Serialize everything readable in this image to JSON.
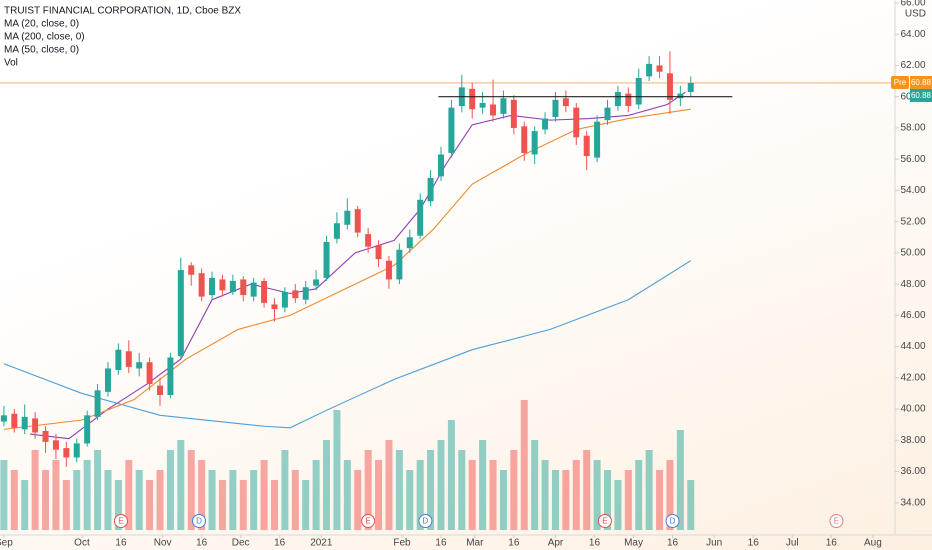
{
  "chart_data": {
    "type": "candlestick",
    "title": "TRUIST FINANCIAL CORPORATION, 1D, Cboe BZX",
    "currency": "USD",
    "volume_label": "Vol",
    "up_color": "#26a69a",
    "down_color": "#ef5350",
    "x": [
      0,
      4,
      8,
      12,
      16,
      20,
      24,
      28,
      32,
      36,
      40,
      44,
      48,
      52,
      56,
      60,
      64,
      68,
      72,
      76,
      80,
      84,
      88,
      92,
      96,
      100,
      104,
      108,
      112,
      116,
      120,
      124,
      128,
      132,
      136,
      140,
      144,
      148,
      152,
      156,
      160,
      164,
      168,
      172,
      176,
      180,
      184,
      188,
      192,
      196,
      200,
      204,
      208,
      212,
      216,
      220,
      224,
      228,
      232,
      236,
      240,
      244,
      248,
      252,
      256,
      260,
      264
    ],
    "open": [
      39.2,
      39.7,
      38.7,
      39.4,
      38.6,
      38.0,
      37.5,
      36.9,
      37.8,
      39.5,
      41.1,
      42.5,
      43.7,
      42.6,
      43.0,
      41.5,
      40.9,
      43.4,
      49.2,
      48.7,
      47.3,
      48.3,
      47.5,
      48.3,
      47.2,
      48.2,
      46.7,
      46.5,
      47.6,
      47.0,
      47.9,
      48.4,
      50.9,
      51.8,
      52.8,
      51.2,
      50.5,
      49.5,
      48.3,
      50.3,
      51.1,
      53.3,
      54.9,
      56.4,
      59.4,
      60.5,
      59.3,
      59.5,
      58.9,
      59.8,
      58.1,
      56.3,
      57.9,
      58.7,
      59.9,
      59.3,
      57.5,
      56.1,
      58.5,
      59.4,
      60.2,
      59.5,
      61.3,
      62.0,
      61.5,
      59.9,
      60.3
    ],
    "high": [
      40.2,
      40.0,
      40.3,
      39.8,
      38.9,
      38.4,
      37.9,
      38.1,
      39.9,
      41.6,
      43.0,
      44.2,
      44.4,
      43.6,
      43.3,
      42.0,
      43.6,
      49.7,
      49.4,
      49.0,
      48.8,
      48.6,
      48.6,
      48.5,
      48.4,
      48.4,
      47.1,
      47.8,
      48.0,
      48.2,
      48.9,
      51.1,
      52.6,
      53.5,
      53.0,
      51.6,
      50.8,
      49.8,
      50.6,
      51.5,
      53.8,
      55.3,
      56.8,
      59.8,
      61.4,
      60.9,
      60.3,
      61.1,
      60.4,
      60.1,
      58.4,
      58.1,
      59.0,
      60.3,
      60.4,
      59.6,
      57.8,
      58.8,
      59.8,
      60.7,
      60.6,
      61.8,
      62.6,
      62.6,
      62.9,
      60.7,
      61.3
    ],
    "low": [
      38.9,
      38.5,
      38.4,
      38.1,
      37.2,
      36.8,
      36.3,
      36.6,
      37.6,
      39.3,
      40.8,
      42.2,
      42.3,
      42.1,
      41.2,
      40.2,
      40.7,
      43.2,
      47.9,
      46.9,
      47.0,
      47.2,
      47.3,
      46.9,
      46.9,
      46.5,
      45.6,
      46.2,
      46.8,
      46.7,
      47.6,
      48.2,
      50.6,
      51.5,
      51.0,
      50.0,
      49.1,
      47.7,
      48.0,
      50.0,
      50.9,
      53.0,
      54.6,
      56.1,
      59.0,
      58.6,
      58.9,
      58.4,
      58.6,
      57.6,
      55.9,
      55.7,
      57.6,
      58.4,
      59.0,
      56.9,
      55.3,
      55.8,
      58.2,
      59.1,
      59.0,
      59.2,
      61.0,
      61.2,
      58.9,
      59.4,
      60.0
    ],
    "close": [
      39.6,
      38.8,
      39.5,
      38.5,
      37.9,
      37.4,
      36.9,
      37.8,
      39.6,
      41.2,
      42.6,
      43.8,
      42.7,
      43.0,
      41.6,
      40.9,
      43.3,
      48.9,
      48.6,
      47.2,
      48.4,
      47.6,
      48.2,
      47.3,
      48.1,
      46.8,
      46.4,
      47.5,
      47.1,
      47.8,
      48.3,
      50.7,
      51.9,
      52.7,
      51.3,
      50.4,
      49.6,
      48.3,
      50.2,
      51.0,
      53.4,
      54.8,
      56.3,
      59.3,
      60.6,
      59.2,
      59.6,
      58.8,
      59.9,
      58.0,
      56.4,
      57.8,
      58.6,
      59.8,
      59.4,
      57.4,
      56.2,
      58.4,
      59.3,
      60.3,
      59.4,
      61.2,
      62.1,
      61.6,
      59.8,
      60.2,
      60.88
    ],
    "volume": [
      7,
      6,
      5,
      8,
      6,
      7,
      5,
      6,
      7,
      8,
      6,
      5,
      7,
      6,
      5,
      6,
      8,
      9,
      8,
      7,
      6,
      5,
      6,
      5,
      6,
      7,
      5,
      8,
      6,
      5,
      7,
      9,
      12,
      7,
      6,
      8,
      7,
      9,
      8,
      6,
      7,
      8,
      9,
      11,
      8,
      7,
      9,
      7,
      6,
      8,
      13,
      9,
      7,
      6,
      6,
      7,
      8,
      7,
      6,
      5,
      6,
      7,
      8,
      6,
      7,
      10,
      5
    ],
    "series": [
      {
        "name": "MA (20, close, 0)",
        "color": "#8e3fb0",
        "x": [
          10,
          25,
          40,
          55,
          68,
          80,
          95,
          110,
          120,
          135,
          150,
          160,
          170,
          180,
          195,
          210,
          225,
          240,
          255,
          262
        ],
        "values": [
          38.4,
          38.1,
          40.0,
          41.6,
          43.2,
          47.0,
          48.0,
          47.4,
          47.7,
          50.0,
          50.8,
          52.8,
          55.7,
          58.2,
          58.8,
          58.5,
          58.6,
          58.8,
          59.5,
          60.3
        ]
      },
      {
        "name": "MA (200, close, 0)",
        "color": "#4a9fd8",
        "x": [
          0,
          30,
          60,
          100,
          110,
          125,
          150,
          180,
          210,
          240,
          264
        ],
        "values": [
          42.9,
          41.0,
          39.6,
          38.9,
          38.8,
          40.0,
          41.9,
          43.8,
          45.1,
          47.0,
          49.5
        ]
      },
      {
        "name": "MA (50, close, 0)",
        "color": "#ee8a32",
        "x": [
          0,
          30,
          50,
          70,
          90,
          110,
          130,
          150,
          165,
          180,
          200,
          220,
          240,
          264
        ],
        "values": [
          38.7,
          39.3,
          40.6,
          43.2,
          45.1,
          46.0,
          47.6,
          49.2,
          51.5,
          54.4,
          56.3,
          57.9,
          58.6,
          59.2
        ]
      }
    ],
    "hline": {
      "y": 60,
      "x": [
        167,
        280
      ]
    },
    "pre_label": "Pre",
    "pre_price": {
      "value": 60.88,
      "label": "60.88"
    },
    "last_price": {
      "value": 60.88,
      "label": "60.88"
    },
    "events": [
      {
        "x": 45,
        "label": "E"
      },
      {
        "x": 75,
        "label": "D"
      },
      {
        "x": 140,
        "label": "E"
      },
      {
        "x": 162,
        "label": "D"
      },
      {
        "x": 231,
        "label": "E"
      },
      {
        "x": 257,
        "label": "D"
      },
      {
        "x": 320,
        "label": "E"
      }
    ],
    "xlim": [
      -1.5,
      342.5
    ],
    "xticks": [
      {
        "value": 0,
        "label": "Sep"
      },
      {
        "value": 30,
        "label": "Oct"
      },
      {
        "value": 45,
        "label": "16"
      },
      {
        "value": 61,
        "label": "Nov"
      },
      {
        "value": 76,
        "label": "16"
      },
      {
        "value": 91,
        "label": "Dec"
      },
      {
        "value": 106,
        "label": "16"
      },
      {
        "value": 122,
        "label": "2021"
      },
      {
        "value": 153,
        "label": "Feb"
      },
      {
        "value": 168,
        "label": "16"
      },
      {
        "value": 181,
        "label": "Mar"
      },
      {
        "value": 196,
        "label": "16"
      },
      {
        "value": 212,
        "label": "Apr"
      },
      {
        "value": 227,
        "label": "16"
      },
      {
        "value": 242,
        "label": "May"
      },
      {
        "value": 257,
        "label": "16"
      },
      {
        "value": 273,
        "label": "Jun"
      },
      {
        "value": 288,
        "label": "16"
      },
      {
        "value": 303,
        "label": "Jul"
      },
      {
        "value": 318,
        "label": "16"
      },
      {
        "value": 334,
        "label": "Aug"
      }
    ],
    "ylim": [
      32,
      66
    ],
    "yticks": [
      {
        "value": 34,
        "label": "34.00"
      },
      {
        "value": 36,
        "label": "36.00"
      },
      {
        "value": 38,
        "label": "38.00"
      },
      {
        "value": 40,
        "label": "40.00"
      },
      {
        "value": 42,
        "label": "42.00"
      },
      {
        "value": 44,
        "label": "44.00"
      },
      {
        "value": 46,
        "label": "46.00"
      },
      {
        "value": 48,
        "label": "48.00"
      },
      {
        "value": 50,
        "label": "50.00"
      },
      {
        "value": 52,
        "label": "52.00"
      },
      {
        "value": 54,
        "label": "54.00"
      },
      {
        "value": 56,
        "label": "56.00"
      },
      {
        "value": 58,
        "label": "58.00"
      },
      {
        "value": 60,
        "label": "60.00"
      },
      {
        "value": 62,
        "label": "62.00"
      },
      {
        "value": 64,
        "label": "64.00"
      },
      {
        "value": 66,
        "label": "66.00"
      }
    ]
  }
}
